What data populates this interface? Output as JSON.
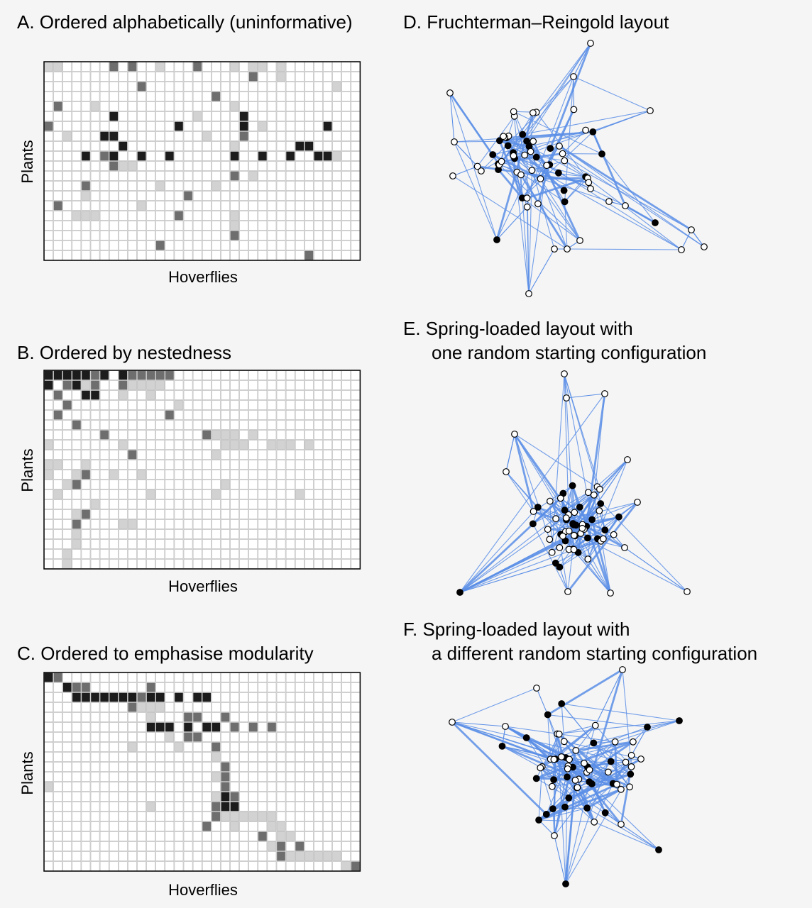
{
  "panels": {
    "A": {
      "title": "A. Ordered alphabetically (uninformative)",
      "xlabel": "Hoverflies",
      "ylabel": "Plants"
    },
    "B": {
      "title": "B. Ordered by nestedness",
      "xlabel": "Hoverflies",
      "ylabel": "Plants"
    },
    "C": {
      "title": "C. Ordered to emphasise modularity",
      "xlabel": "Hoverflies",
      "ylabel": "Plants"
    },
    "D": {
      "title": "D. Fruchterman–Reingold layout"
    },
    "E": {
      "title_line1": "E. Spring-loaded layout with",
      "title_line2": "one random starting configuration"
    },
    "F": {
      "title_line1": "F. Spring-loaded layout with",
      "title_line2": "a different random starting configuration"
    }
  },
  "matrix": {
    "rows": 20,
    "cols": 34,
    "colors": {
      "empty": "#ffffff",
      "grid": "#b4b4b4",
      "light": "#d2d2d2",
      "mid": "#6e6e6e",
      "dark": "#1c1c1c"
    }
  },
  "network": {
    "colors": {
      "edge": "#5b8ee6",
      "plant": "#000000",
      "hoverfly": "#ffffff"
    }
  }
}
